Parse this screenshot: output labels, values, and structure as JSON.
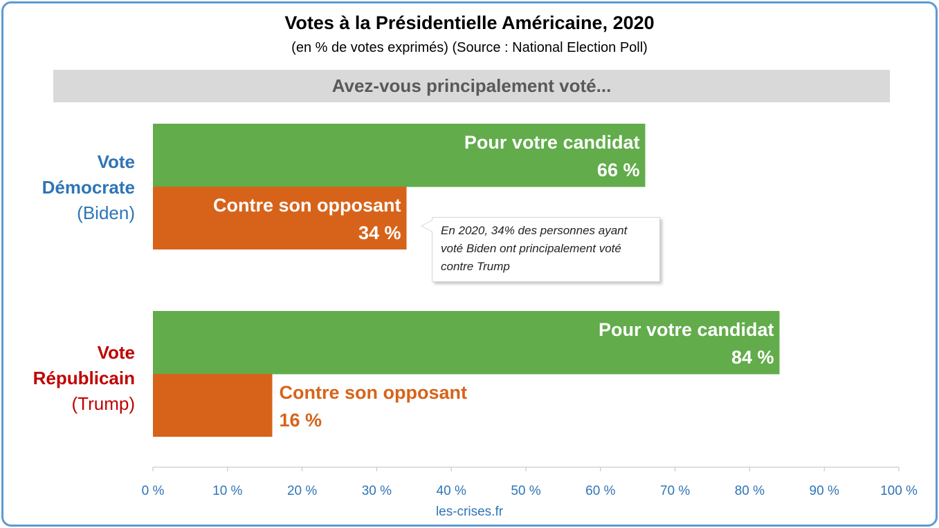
{
  "title": "Votes à la Présidentielle Américaine, 2020",
  "subtitle": "(en % de votes exprimés) (Source : National Election Poll)",
  "banner": "Avez-vous principalement voté...",
  "groups": {
    "dem": {
      "line1": "Vote",
      "line2": "Démocrate",
      "line3": "(Biden)"
    },
    "rep": {
      "line1": "Vote",
      "line2": "Républicain",
      "line3": "(Trump)"
    }
  },
  "callout": "En 2020, 34% des personnes ayant voté Biden ont principalement voté contre Trump",
  "source": "les-crises.fr",
  "colors": {
    "pour": "#62ac4b",
    "contre": "#d7631a",
    "democrat": "#2e75b6",
    "republican": "#c00000",
    "axis": "#2e75b6"
  },
  "chart_data": {
    "type": "bar",
    "orientation": "horizontal",
    "categories": [
      "Vote Démocrate (Biden)",
      "Vote Républicain (Trump)"
    ],
    "series": [
      {
        "name": "Pour votre candidat",
        "values": [
          66,
          84
        ],
        "labels": [
          "66 %",
          "84 %"
        ]
      },
      {
        "name": "Contre son opposant",
        "values": [
          34,
          16
        ],
        "labels": [
          "34 %",
          "16 %"
        ]
      }
    ],
    "xlim": [
      0,
      100
    ],
    "xticks": [
      0,
      10,
      20,
      30,
      40,
      50,
      60,
      70,
      80,
      90,
      100
    ],
    "xtick_labels": [
      "0 %",
      "10 %",
      "20 %",
      "30 %",
      "40 %",
      "50 %",
      "60 %",
      "70 %",
      "80 %",
      "90 %",
      "100 %"
    ],
    "grid": false
  }
}
